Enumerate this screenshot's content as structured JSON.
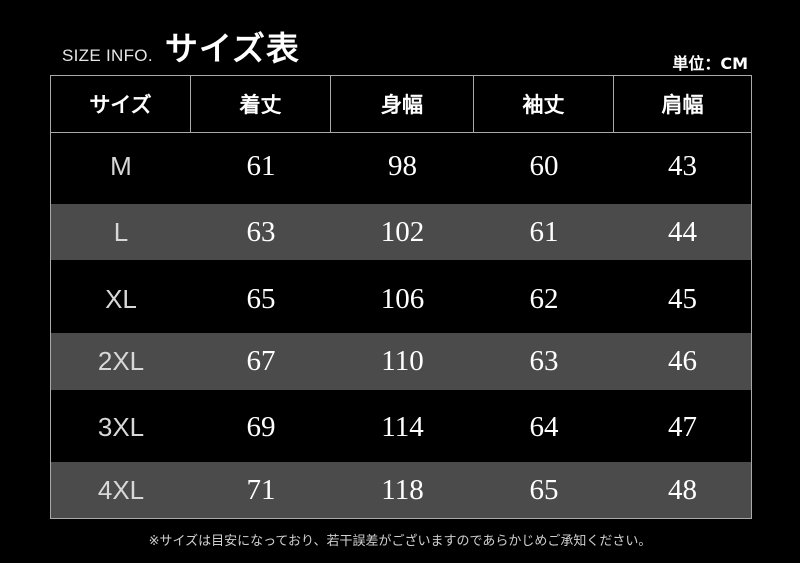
{
  "title_en": "SIZE INFO.",
  "title_jp": "サイズ表",
  "unit": "単位：CM",
  "headers": [
    "サイズ",
    "着丈",
    "身幅",
    "袖丈",
    "肩幅"
  ],
  "rows": [
    [
      "M",
      "61",
      "98",
      "60",
      "43"
    ],
    [
      "L",
      "63",
      "102",
      "61",
      "44"
    ],
    [
      "XL",
      "65",
      "106",
      "62",
      "45"
    ],
    [
      "2XL",
      "67",
      "110",
      "63",
      "46"
    ],
    [
      "3XL",
      "69",
      "114",
      "64",
      "47"
    ],
    [
      "4XL",
      "71",
      "118",
      "65",
      "48"
    ]
  ],
  "note": "※サイズは目安になっており、若干誤差がございますのであらかじめご承知ください。",
  "colors": {
    "background": "#000000",
    "alt_row": "#4b4b4b",
    "border": "#a9a9a9"
  }
}
